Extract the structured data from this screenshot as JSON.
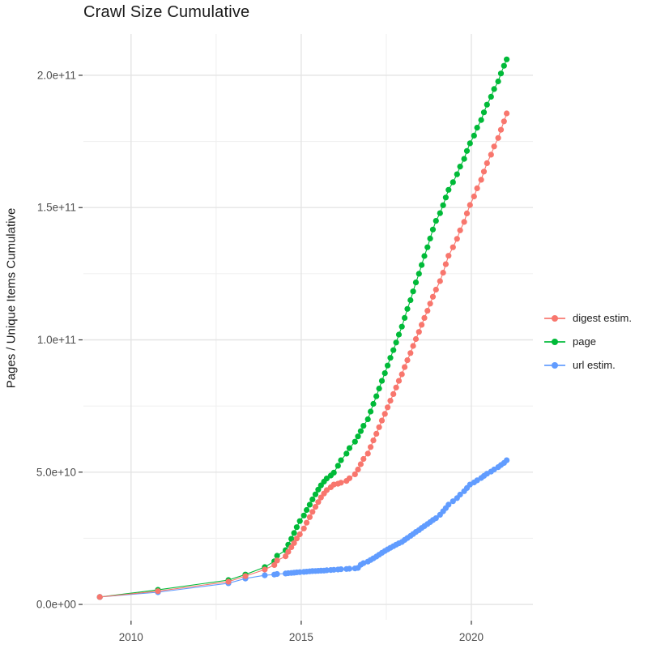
{
  "chart_data": {
    "type": "scatter",
    "title": "Crawl Size Cumulative",
    "xlabel": "",
    "ylabel": "Pages / Unique Items Cumulative",
    "background": "#FFFFFF",
    "grid": true,
    "legend_position": "right",
    "value_unit": "items, stored as multiples of 1e9",
    "xlim": [
      2008.6,
      2021.81
    ],
    "ylim_e9": [
      -5.8,
      215.6
    ],
    "x_ticks": {
      "values": [
        2010,
        2015,
        2020
      ],
      "labels": [
        "2010",
        "2015",
        "2020"
      ]
    },
    "y_ticks": {
      "values_e9": [
        0,
        50,
        100,
        150,
        200
      ],
      "labels": [
        "0.0e+00",
        "5.0e+10",
        "1.0e+11",
        "1.5e+11",
        "2.0e+11"
      ]
    },
    "x_minor": [
      2012.5,
      2017.5
    ],
    "y_minor_e9": [
      25,
      75,
      125,
      175
    ],
    "series": [
      {
        "name": "digest estim.",
        "color": "#F8766D",
        "points_year_e9": [
          [
            2009.08,
            2.8
          ],
          [
            2010.79,
            5.0
          ],
          [
            2012.86,
            8.6
          ],
          [
            2013.36,
            10.7
          ],
          [
            2013.93,
            13.2
          ],
          [
            2014.21,
            14.9
          ],
          [
            2014.29,
            16.6
          ],
          [
            2014.54,
            18.2
          ],
          [
            2014.62,
            19.9
          ],
          [
            2014.71,
            21.6
          ],
          [
            2014.79,
            23.2
          ],
          [
            2014.87,
            24.9
          ],
          [
            2014.96,
            26.5
          ],
          [
            2015.08,
            28.7
          ],
          [
            2015.16,
            30.9
          ],
          [
            2015.25,
            33.0
          ],
          [
            2015.33,
            35.0
          ],
          [
            2015.42,
            36.9
          ],
          [
            2015.5,
            38.7
          ],
          [
            2015.58,
            40.4
          ],
          [
            2015.67,
            41.9
          ],
          [
            2015.75,
            43.2
          ],
          [
            2015.87,
            44.3
          ],
          [
            2015.96,
            45.3
          ],
          [
            2016.08,
            45.6
          ],
          [
            2016.17,
            46.0
          ],
          [
            2016.33,
            46.7
          ],
          [
            2016.42,
            47.7
          ],
          [
            2016.58,
            49.2
          ],
          [
            2016.67,
            51.0
          ],
          [
            2016.75,
            53.0
          ],
          [
            2016.83,
            55.0
          ],
          [
            2016.96,
            57.0
          ],
          [
            2017.04,
            59.5
          ],
          [
            2017.12,
            62.0
          ],
          [
            2017.21,
            64.5
          ],
          [
            2017.29,
            67.0
          ],
          [
            2017.37,
            69.5
          ],
          [
            2017.46,
            72.0
          ],
          [
            2017.54,
            74.5
          ],
          [
            2017.62,
            77.0
          ],
          [
            2017.71,
            79.5
          ],
          [
            2017.79,
            82.0
          ],
          [
            2017.87,
            84.5
          ],
          [
            2017.96,
            87.0
          ],
          [
            2018.04,
            89.7
          ],
          [
            2018.12,
            92.3
          ],
          [
            2018.21,
            95.0
          ],
          [
            2018.29,
            97.7
          ],
          [
            2018.37,
            100.3
          ],
          [
            2018.46,
            103.0
          ],
          [
            2018.54,
            105.7
          ],
          [
            2018.62,
            108.3
          ],
          [
            2018.71,
            111.0
          ],
          [
            2018.79,
            113.7
          ],
          [
            2018.87,
            116.3
          ],
          [
            2018.96,
            119.0
          ],
          [
            2019.08,
            122.2
          ],
          [
            2019.17,
            125.4
          ],
          [
            2019.25,
            128.6
          ],
          [
            2019.33,
            131.8
          ],
          [
            2019.46,
            135.0
          ],
          [
            2019.58,
            138.2
          ],
          [
            2019.67,
            141.4
          ],
          [
            2019.79,
            144.6
          ],
          [
            2019.87,
            147.8
          ],
          [
            2019.96,
            151.0
          ],
          [
            2020.08,
            154.2
          ],
          [
            2020.17,
            157.3
          ],
          [
            2020.29,
            160.5
          ],
          [
            2020.37,
            163.6
          ],
          [
            2020.46,
            166.8
          ],
          [
            2020.58,
            170.0
          ],
          [
            2020.67,
            173.1
          ],
          [
            2020.79,
            176.3
          ],
          [
            2020.87,
            179.4
          ],
          [
            2020.96,
            182.6
          ],
          [
            2021.04,
            185.6
          ]
        ]
      },
      {
        "name": "page",
        "color": "#00BA38",
        "points_year_e9": [
          [
            2009.08,
            2.8
          ],
          [
            2010.79,
            5.5
          ],
          [
            2012.86,
            9.2
          ],
          [
            2013.36,
            11.3
          ],
          [
            2013.93,
            14.1
          ],
          [
            2014.21,
            16.3
          ],
          [
            2014.29,
            18.4
          ],
          [
            2014.54,
            20.5
          ],
          [
            2014.62,
            22.6
          ],
          [
            2014.71,
            24.8
          ],
          [
            2014.79,
            27.0
          ],
          [
            2014.87,
            29.2
          ],
          [
            2014.96,
            31.5
          ],
          [
            2015.08,
            33.6
          ],
          [
            2015.16,
            35.7
          ],
          [
            2015.25,
            37.7
          ],
          [
            2015.33,
            39.7
          ],
          [
            2015.42,
            41.6
          ],
          [
            2015.5,
            43.4
          ],
          [
            2015.58,
            45.0
          ],
          [
            2015.67,
            46.4
          ],
          [
            2015.75,
            47.6
          ],
          [
            2015.87,
            48.7
          ],
          [
            2015.96,
            49.8
          ],
          [
            2016.08,
            52.4
          ],
          [
            2016.17,
            54.5
          ],
          [
            2016.33,
            57.0
          ],
          [
            2016.42,
            59.1
          ],
          [
            2016.58,
            61.5
          ],
          [
            2016.67,
            63.5
          ],
          [
            2016.75,
            65.5
          ],
          [
            2016.83,
            67.5
          ],
          [
            2016.96,
            70.0
          ],
          [
            2017.04,
            72.9
          ],
          [
            2017.12,
            75.8
          ],
          [
            2017.21,
            78.7
          ],
          [
            2017.29,
            81.6
          ],
          [
            2017.37,
            84.5
          ],
          [
            2017.46,
            87.4
          ],
          [
            2017.54,
            90.3
          ],
          [
            2017.62,
            93.2
          ],
          [
            2017.71,
            96.1
          ],
          [
            2017.79,
            99.0
          ],
          [
            2017.87,
            102.0
          ],
          [
            2017.96,
            105.0
          ],
          [
            2018.04,
            108.3
          ],
          [
            2018.12,
            111.7
          ],
          [
            2018.21,
            115.0
          ],
          [
            2018.29,
            118.3
          ],
          [
            2018.37,
            121.7
          ],
          [
            2018.46,
            125.0
          ],
          [
            2018.54,
            128.3
          ],
          [
            2018.62,
            131.7
          ],
          [
            2018.71,
            135.0
          ],
          [
            2018.79,
            138.3
          ],
          [
            2018.87,
            141.7
          ],
          [
            2018.96,
            145.0
          ],
          [
            2019.08,
            147.9
          ],
          [
            2019.17,
            150.9
          ],
          [
            2019.25,
            153.8
          ],
          [
            2019.33,
            156.7
          ],
          [
            2019.46,
            159.6
          ],
          [
            2019.58,
            162.6
          ],
          [
            2019.67,
            165.5
          ],
          [
            2019.79,
            168.4
          ],
          [
            2019.87,
            171.4
          ],
          [
            2019.96,
            174.3
          ],
          [
            2020.08,
            177.2
          ],
          [
            2020.17,
            180.2
          ],
          [
            2020.29,
            183.1
          ],
          [
            2020.37,
            186.0
          ],
          [
            2020.46,
            188.9
          ],
          [
            2020.58,
            191.9
          ],
          [
            2020.67,
            194.8
          ],
          [
            2020.79,
            197.7
          ],
          [
            2020.87,
            200.7
          ],
          [
            2020.96,
            203.6
          ],
          [
            2021.04,
            206.0
          ]
        ]
      },
      {
        "name": "url estim.",
        "color": "#619CFF",
        "points_year_e9": [
          [
            2009.08,
            2.8
          ],
          [
            2010.79,
            4.6
          ],
          [
            2012.86,
            8.0
          ],
          [
            2013.36,
            9.8
          ],
          [
            2013.93,
            11.0
          ],
          [
            2014.21,
            11.3
          ],
          [
            2014.29,
            11.5
          ],
          [
            2014.54,
            11.7
          ],
          [
            2014.62,
            11.8
          ],
          [
            2014.71,
            11.9
          ],
          [
            2014.79,
            12.0
          ],
          [
            2014.87,
            12.1
          ],
          [
            2014.96,
            12.2
          ],
          [
            2015.08,
            12.3
          ],
          [
            2015.16,
            12.4
          ],
          [
            2015.25,
            12.5
          ],
          [
            2015.33,
            12.6
          ],
          [
            2015.42,
            12.65
          ],
          [
            2015.5,
            12.7
          ],
          [
            2015.58,
            12.75
          ],
          [
            2015.67,
            12.8
          ],
          [
            2015.75,
            12.9
          ],
          [
            2015.87,
            13.0
          ],
          [
            2015.96,
            13.1
          ],
          [
            2016.08,
            13.2
          ],
          [
            2016.17,
            13.3
          ],
          [
            2016.33,
            13.4
          ],
          [
            2016.42,
            13.5
          ],
          [
            2016.58,
            13.6
          ],
          [
            2016.67,
            13.8
          ],
          [
            2016.75,
            15.0
          ],
          [
            2016.83,
            15.6
          ],
          [
            2016.96,
            16.2
          ],
          [
            2017.04,
            16.8
          ],
          [
            2017.12,
            17.4
          ],
          [
            2017.21,
            18.1
          ],
          [
            2017.29,
            18.8
          ],
          [
            2017.37,
            19.5
          ],
          [
            2017.46,
            20.2
          ],
          [
            2017.54,
            20.8
          ],
          [
            2017.62,
            21.4
          ],
          [
            2017.71,
            22.0
          ],
          [
            2017.79,
            22.6
          ],
          [
            2017.87,
            23.1
          ],
          [
            2017.96,
            23.6
          ],
          [
            2018.04,
            24.4
          ],
          [
            2018.12,
            25.1
          ],
          [
            2018.21,
            25.9
          ],
          [
            2018.29,
            26.6
          ],
          [
            2018.37,
            27.4
          ],
          [
            2018.46,
            28.1
          ],
          [
            2018.54,
            28.9
          ],
          [
            2018.62,
            29.6
          ],
          [
            2018.71,
            30.4
          ],
          [
            2018.79,
            31.1
          ],
          [
            2018.87,
            31.9
          ],
          [
            2018.96,
            32.6
          ],
          [
            2019.08,
            33.9
          ],
          [
            2019.17,
            35.2
          ],
          [
            2019.25,
            36.4
          ],
          [
            2019.33,
            37.7
          ],
          [
            2019.46,
            39.0
          ],
          [
            2019.58,
            40.2
          ],
          [
            2019.67,
            41.5
          ],
          [
            2019.79,
            42.8
          ],
          [
            2019.87,
            44.0
          ],
          [
            2019.96,
            45.3
          ],
          [
            2020.08,
            46.1
          ],
          [
            2020.17,
            46.9
          ],
          [
            2020.29,
            47.8
          ],
          [
            2020.37,
            48.6
          ],
          [
            2020.46,
            49.4
          ],
          [
            2020.58,
            50.2
          ],
          [
            2020.67,
            51.0
          ],
          [
            2020.79,
            51.9
          ],
          [
            2020.87,
            52.7
          ],
          [
            2020.96,
            53.5
          ],
          [
            2021.04,
            54.5
          ]
        ]
      }
    ]
  },
  "legend": {
    "items": [
      {
        "label": "digest estim.",
        "color": "#F8766D"
      },
      {
        "label": "page",
        "color": "#00BA38"
      },
      {
        "label": "url estim.",
        "color": "#619CFF"
      }
    ]
  },
  "style_colors": {
    "grid_major": "#E4E4E4",
    "grid_minor": "#F0F0F0",
    "axis_text": "#4D4D4D",
    "tick_mark": "#333333"
  }
}
